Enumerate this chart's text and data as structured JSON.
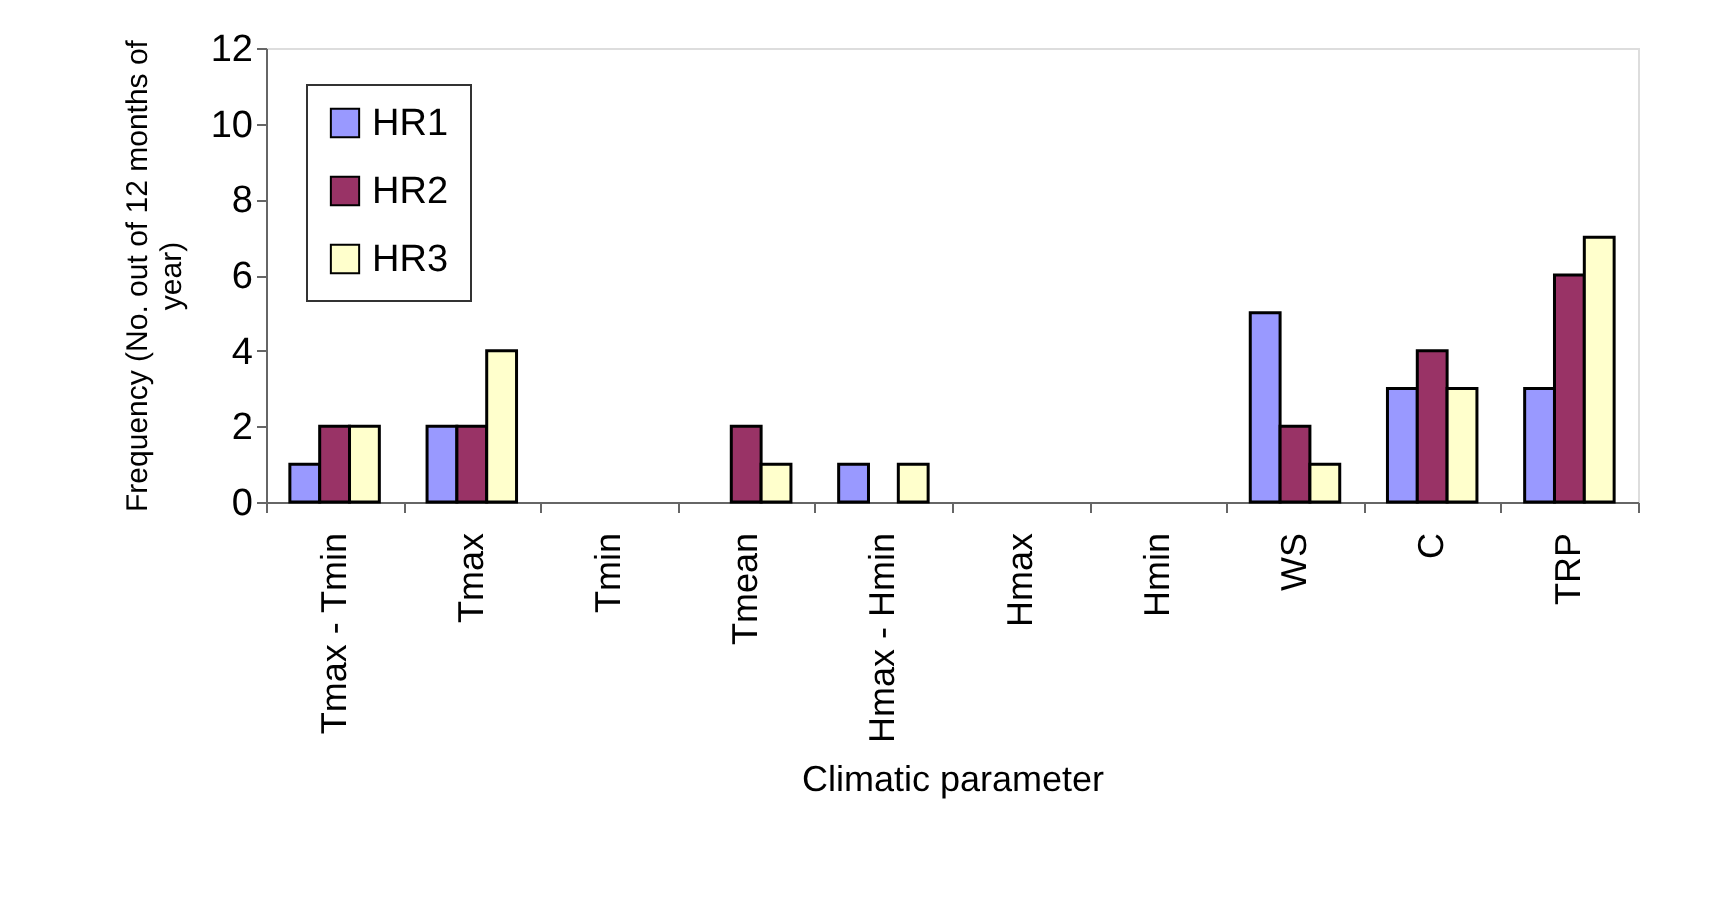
{
  "chart_data": {
    "type": "bar",
    "xlabel": "Climatic parameter",
    "ylabel": "Frequency (No. out of 12 months of\nyear)",
    "categories": [
      "Tmax - Tmin",
      "Tmax",
      "Tmin",
      "Tmean",
      "Hmax - Hmin",
      "Hmax",
      "Hmin",
      "WS",
      "C",
      "TRP"
    ],
    "series": [
      {
        "name": "HR1",
        "color": "#9999ff",
        "values": [
          1,
          2,
          0,
          0,
          1,
          0,
          0,
          5,
          3,
          3
        ]
      },
      {
        "name": "HR2",
        "color": "#993366",
        "values": [
          2,
          2,
          0,
          2,
          0,
          0,
          0,
          2,
          4,
          6
        ]
      },
      {
        "name": "HR3",
        "color": "#ffffcc",
        "values": [
          2,
          4,
          0,
          1,
          1,
          0,
          0,
          1,
          3,
          7
        ]
      }
    ],
    "ylim": [
      0,
      12
    ],
    "yticks": [
      0,
      2,
      4,
      6,
      8,
      10,
      12
    ],
    "grid": false,
    "legend": "top left"
  }
}
